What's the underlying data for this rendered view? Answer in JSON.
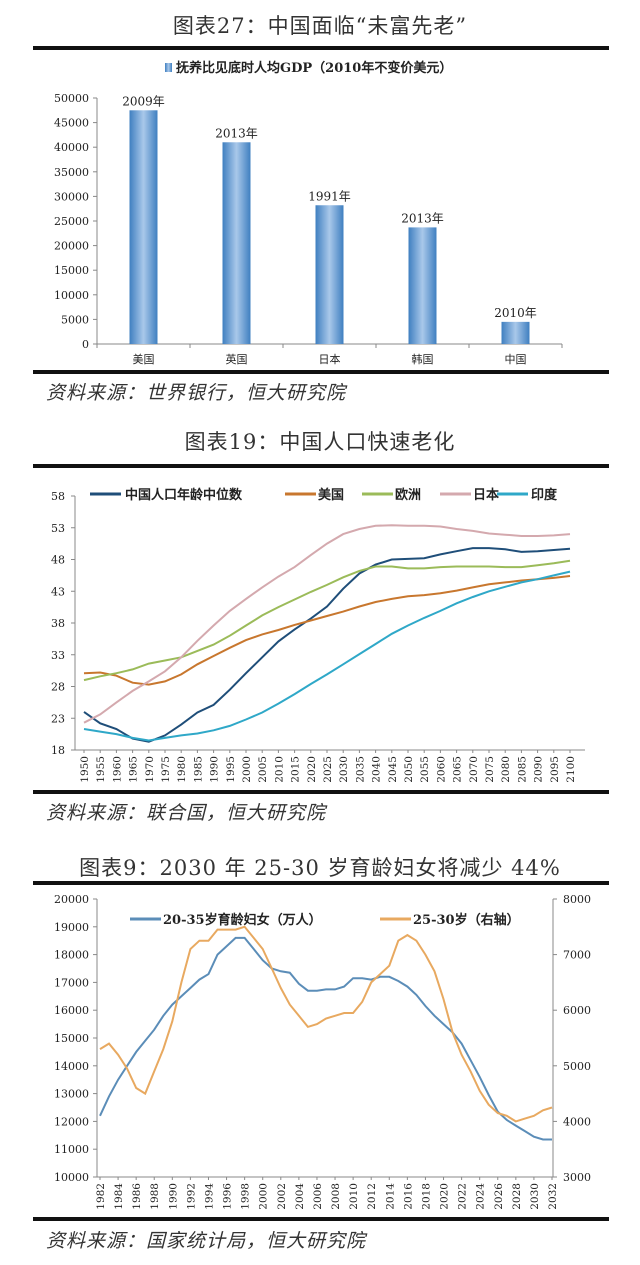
{
  "charts": [
    {
      "title": "图表27：中国面临“未富先老”",
      "source": "资料来源：世界银行，恒大研究院"
    },
    {
      "title": "图表19：中国人口快速老化",
      "source": "资料来源：联合国，恒大研究院"
    },
    {
      "title": "图表9：2030 年 25-30 岁育龄妇女将减少 44%",
      "source": "资料来源：国家统计局，恒大研究院"
    }
  ],
  "chart_data": [
    {
      "type": "bar",
      "title": "图表27：中国面临“未富先老”",
      "categories": [
        "美国",
        "英国",
        "日本",
        "韩国",
        "中国"
      ],
      "series": [
        {
          "name": "抚养比见底时人均GDP（2010年不变价美元）",
          "values": [
            47500,
            41000,
            28200,
            23700,
            4500
          ],
          "color": "#4f8fcf"
        }
      ],
      "data_labels": [
        "2009年",
        "2013年",
        "1991年",
        "2013年",
        "2010年"
      ],
      "ylim": [
        0,
        50000
      ],
      "yticks": [
        "0",
        "5000",
        "10000",
        "15000",
        "20000",
        "25000",
        "30000",
        "35000",
        "40000",
        "45000",
        "50000"
      ],
      "legend": "top",
      "grid": false
    },
    {
      "type": "line",
      "title": "图表19：中国人口快速老化",
      "x": [
        1950,
        1955,
        1960,
        1965,
        1970,
        1975,
        1980,
        1985,
        1990,
        1995,
        2000,
        2005,
        2010,
        2015,
        2020,
        2025,
        2030,
        2035,
        2040,
        2045,
        2050,
        2055,
        2060,
        2065,
        2070,
        2075,
        2080,
        2085,
        2090,
        2095,
        2100
      ],
      "ylim": [
        18,
        58
      ],
      "yticks": [
        "18",
        "23",
        "28",
        "33",
        "38",
        "43",
        "48",
        "53",
        "58"
      ],
      "legend": "top",
      "grid": false,
      "series": [
        {
          "name": "中国人口年龄中位数",
          "color": "#1f4e79",
          "values": [
            24,
            22.2,
            21.3,
            19.8,
            19.3,
            20.3,
            22,
            23.9,
            25.1,
            27.5,
            30.1,
            32.6,
            35.1,
            37,
            38.7,
            40.6,
            43.4,
            45.8,
            47.2,
            48,
            48.1,
            48.2,
            48.8,
            49.3,
            49.8,
            49.8,
            49.6,
            49.2,
            49.3,
            49.5,
            49.7
          ]
        },
        {
          "name": "美国",
          "color": "#c8772e",
          "values": [
            30.1,
            30.2,
            29.7,
            28.6,
            28.3,
            28.8,
            29.9,
            31.5,
            32.8,
            34.1,
            35.3,
            36.2,
            36.9,
            37.7,
            38.4,
            39.1,
            39.8,
            40.6,
            41.3,
            41.8,
            42.2,
            42.4,
            42.7,
            43.1,
            43.6,
            44.1,
            44.4,
            44.7,
            44.9,
            45.1,
            45.4
          ]
        },
        {
          "name": "欧洲",
          "color": "#9bbb59",
          "values": [
            29,
            29.6,
            30.1,
            30.7,
            31.6,
            32.1,
            32.6,
            33.6,
            34.6,
            36,
            37.6,
            39.2,
            40.5,
            41.7,
            42.9,
            44,
            45.2,
            46.2,
            46.9,
            46.9,
            46.6,
            46.6,
            46.8,
            46.9,
            46.9,
            46.9,
            46.8,
            46.8,
            47.1,
            47.4,
            47.8
          ]
        },
        {
          "name": "日本",
          "color": "#d4a9ae",
          "values": [
            22.3,
            23.6,
            25.5,
            27.3,
            28.8,
            30.4,
            32.6,
            35.2,
            37.6,
            39.9,
            41.8,
            43.6,
            45.3,
            46.8,
            48.7,
            50.5,
            52,
            52.8,
            53.3,
            53.4,
            53.3,
            53.3,
            53.2,
            52.8,
            52.5,
            52.1,
            51.9,
            51.7,
            51.7,
            51.8,
            52
          ]
        },
        {
          "name": "印度",
          "color": "#2fa8c8",
          "values": [
            21.3,
            20.9,
            20.5,
            19.9,
            19.5,
            19.9,
            20.3,
            20.6,
            21.1,
            21.8,
            22.8,
            23.9,
            25.3,
            26.8,
            28.4,
            29.9,
            31.5,
            33.1,
            34.7,
            36.3,
            37.6,
            38.8,
            39.9,
            41.1,
            42.1,
            43,
            43.7,
            44.4,
            44.9,
            45.5,
            46.1
          ]
        }
      ]
    },
    {
      "type": "line",
      "title": "图表9：2030 年 25-30 岁育龄妇女将减少 44%",
      "x": [
        1982,
        1983,
        1984,
        1985,
        1986,
        1987,
        1988,
        1989,
        1990,
        1991,
        1992,
        1993,
        1994,
        1995,
        1996,
        1997,
        1998,
        1999,
        2000,
        2001,
        2002,
        2003,
        2004,
        2005,
        2006,
        2007,
        2008,
        2009,
        2010,
        2011,
        2012,
        2013,
        2014,
        2015,
        2016,
        2017,
        2018,
        2019,
        2020,
        2021,
        2022,
        2023,
        2024,
        2025,
        2026,
        2027,
        2028,
        2029,
        2030,
        2031,
        2032
      ],
      "xticks": [
        "1982",
        "1984",
        "1986",
        "1988",
        "1990",
        "1992",
        "1994",
        "1996",
        "1998",
        "2000",
        "2002",
        "2004",
        "2006",
        "2008",
        "2010",
        "2012",
        "2014",
        "2016",
        "2018",
        "2020",
        "2022",
        "2024",
        "2026",
        "2028",
        "2030",
        "2032"
      ],
      "ylim": [
        10000,
        20000
      ],
      "yticks": [
        "10000",
        "11000",
        "12000",
        "13000",
        "14000",
        "15000",
        "16000",
        "17000",
        "18000",
        "19000",
        "20000"
      ],
      "y2lim": [
        3000,
        8000
      ],
      "y2ticks": [
        "3000",
        "4000",
        "5000",
        "6000",
        "7000",
        "8000"
      ],
      "legend": "top",
      "grid": false,
      "series": [
        {
          "name": "20-35岁育龄妇女（万人）",
          "axis": "left",
          "color": "#5b8db8",
          "values": [
            12200,
            12900,
            13500,
            14000,
            14500,
            14900,
            15300,
            15800,
            16200,
            16500,
            16800,
            17100,
            17300,
            18000,
            18300,
            18600,
            18600,
            18200,
            17800,
            17500,
            17400,
            17350,
            16950,
            16700,
            16700,
            16750,
            16750,
            16850,
            17150,
            17150,
            17100,
            17200,
            17200,
            17050,
            16850,
            16550,
            16150,
            15800,
            15500,
            15200,
            14800,
            14200,
            13600,
            12950,
            12350,
            12050,
            11850,
            11650,
            11450,
            11350,
            11350
          ]
        },
        {
          "name": "25-30岁（右轴）",
          "axis": "right",
          "color": "#e8a960",
          "values": [
            5300,
            5400,
            5200,
            4950,
            4600,
            4500,
            4900,
            5300,
            5800,
            6500,
            7100,
            7250,
            7250,
            7450,
            7450,
            7450,
            7500,
            7300,
            7100,
            6750,
            6400,
            6100,
            5900,
            5700,
            5750,
            5850,
            5900,
            5950,
            5950,
            6150,
            6500,
            6650,
            6800,
            7250,
            7350,
            7250,
            7000,
            6700,
            6200,
            5600,
            5200,
            4900,
            4550,
            4300,
            4150,
            4100,
            4000,
            4050,
            4100,
            4200,
            4250
          ]
        }
      ]
    }
  ]
}
